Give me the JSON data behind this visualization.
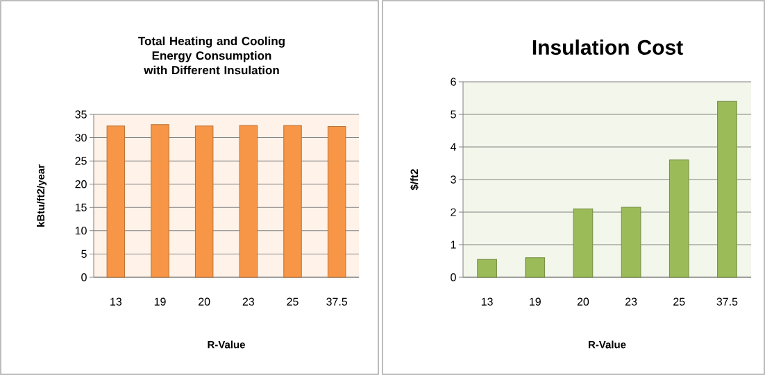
{
  "chart_data": [
    {
      "type": "bar",
      "title": "Total Heating and Cooling Energy Consumption with Different Insulation",
      "xlabel": "R-Value",
      "ylabel": "kBtu/ft2/year",
      "categories": [
        "13",
        "19",
        "20",
        "23",
        "25",
        "37.5"
      ],
      "values": [
        32.5,
        32.8,
        32.5,
        32.6,
        32.6,
        32.4
      ],
      "color": "#f79646",
      "ylim": [
        0,
        35
      ],
      "yticks": [
        0,
        5,
        10,
        15,
        20,
        25,
        30,
        35
      ],
      "grid": "y"
    },
    {
      "type": "bar",
      "title": "Insulation Cost",
      "xlabel": "R-Value",
      "ylabel": "$/ft2",
      "categories": [
        "13",
        "19",
        "20",
        "23",
        "25",
        "37.5"
      ],
      "values": [
        0.55,
        0.6,
        2.1,
        2.15,
        3.6,
        5.4
      ],
      "color": "#9bbb59",
      "ylim": [
        0,
        6
      ],
      "yticks": [
        0,
        1,
        2,
        3,
        4,
        5,
        6
      ],
      "grid": "y"
    }
  ]
}
